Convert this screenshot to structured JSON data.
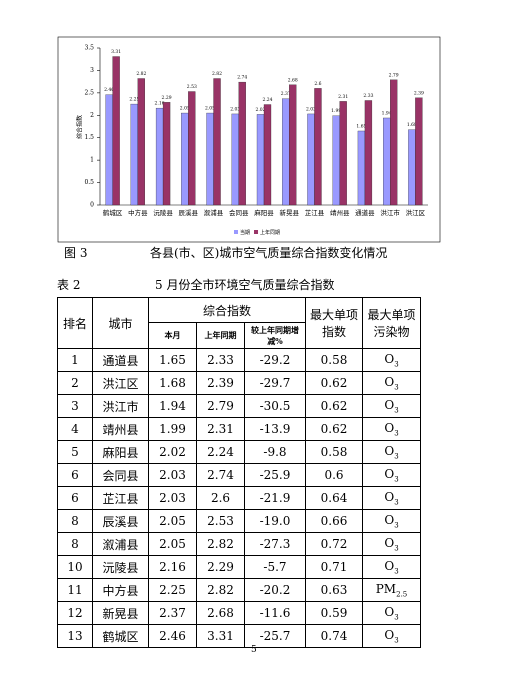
{
  "chart_data": {
    "type": "bar",
    "y_label": "综合指数",
    "legend": "bottom",
    "categories": [
      "鹤城区",
      "中方县",
      "沅陵县",
      "辰溪县",
      "溆浦县",
      "会同县",
      "麻阳县",
      "新晃县",
      "芷江县",
      "靖州县",
      "通道县",
      "洪江市",
      "洪江区"
    ],
    "series": [
      {
        "name": "当期",
        "color": "#9999ff",
        "values": [
          2.46,
          2.25,
          2.16,
          2.05,
          2.05,
          2.03,
          2.02,
          2.37,
          2.03,
          1.99,
          1.65,
          1.94,
          1.68
        ]
      },
      {
        "name": "上年同期",
        "color": "#993366",
        "values": [
          3.31,
          2.82,
          2.29,
          2.53,
          2.82,
          2.74,
          2.24,
          2.68,
          2.6,
          2.31,
          2.33,
          2.79,
          2.39
        ]
      }
    ],
    "ylim": [
      0,
      3.5
    ],
    "yticks": [
      0,
      0.5,
      1,
      1.5,
      2,
      2.5,
      3,
      3.5
    ]
  },
  "figure": {
    "label": "图 3",
    "caption": "各县(市、区)城市空气质量综合指数变化情况"
  },
  "table_caption": {
    "label": "表 2",
    "title": "5 月份全市环境空气质量综合指数"
  },
  "table": {
    "header": {
      "rank": "排名",
      "city": "城市",
      "index": "综合指数",
      "sub": [
        "本月",
        "上年同期",
        "较上年同期增减%"
      ],
      "max_index": "最大单项指数",
      "max_pollutant": "最大单项污染物"
    },
    "rows": [
      [
        "1",
        "通道县",
        "1.65",
        "2.33",
        "-29.2",
        "0.58",
        {
          "text": "O",
          "sub": "3"
        }
      ],
      [
        "2",
        "洪江区",
        "1.68",
        "2.39",
        "-29.7",
        "0.62",
        {
          "text": "O",
          "sub": "3"
        }
      ],
      [
        "3",
        "洪江市",
        "1.94",
        "2.79",
        "-30.5",
        "0.62",
        {
          "text": "O",
          "sub": "3"
        }
      ],
      [
        "4",
        "靖州县",
        "1.99",
        "2.31",
        "-13.9",
        "0.62",
        {
          "text": "O",
          "sub": "3"
        }
      ],
      [
        "5",
        "麻阳县",
        "2.02",
        "2.24",
        "-9.8",
        "0.58",
        {
          "text": "O",
          "sub": "3"
        }
      ],
      [
        "6",
        "会同县",
        "2.03",
        "2.74",
        "-25.9",
        "0.6",
        {
          "text": "O",
          "sub": "3"
        }
      ],
      [
        "6",
        "芷江县",
        "2.03",
        "2.6",
        "-21.9",
        "0.64",
        {
          "text": "O",
          "sub": "3"
        }
      ],
      [
        "8",
        "辰溪县",
        "2.05",
        "2.53",
        "-19.0",
        "0.66",
        {
          "text": "O",
          "sub": "3"
        }
      ],
      [
        "8",
        "溆浦县",
        "2.05",
        "2.82",
        "-27.3",
        "0.72",
        {
          "text": "O",
          "sub": "3"
        }
      ],
      [
        "10",
        "沅陵县",
        "2.16",
        "2.29",
        "-5.7",
        "0.71",
        {
          "text": "O",
          "sub": "3"
        }
      ],
      [
        "11",
        "中方县",
        "2.25",
        "2.82",
        "-20.2",
        "0.63",
        {
          "text": "PM",
          "sub": "2.5"
        }
      ],
      [
        "12",
        "新晃县",
        "2.37",
        "2.68",
        "-11.6",
        "0.59",
        {
          "text": "O",
          "sub": "3"
        }
      ],
      [
        "13",
        "鹤城区",
        "2.46",
        "3.31",
        "-25.7",
        "0.74",
        {
          "text": "O",
          "sub": "3"
        }
      ]
    ]
  },
  "page_number": "5"
}
